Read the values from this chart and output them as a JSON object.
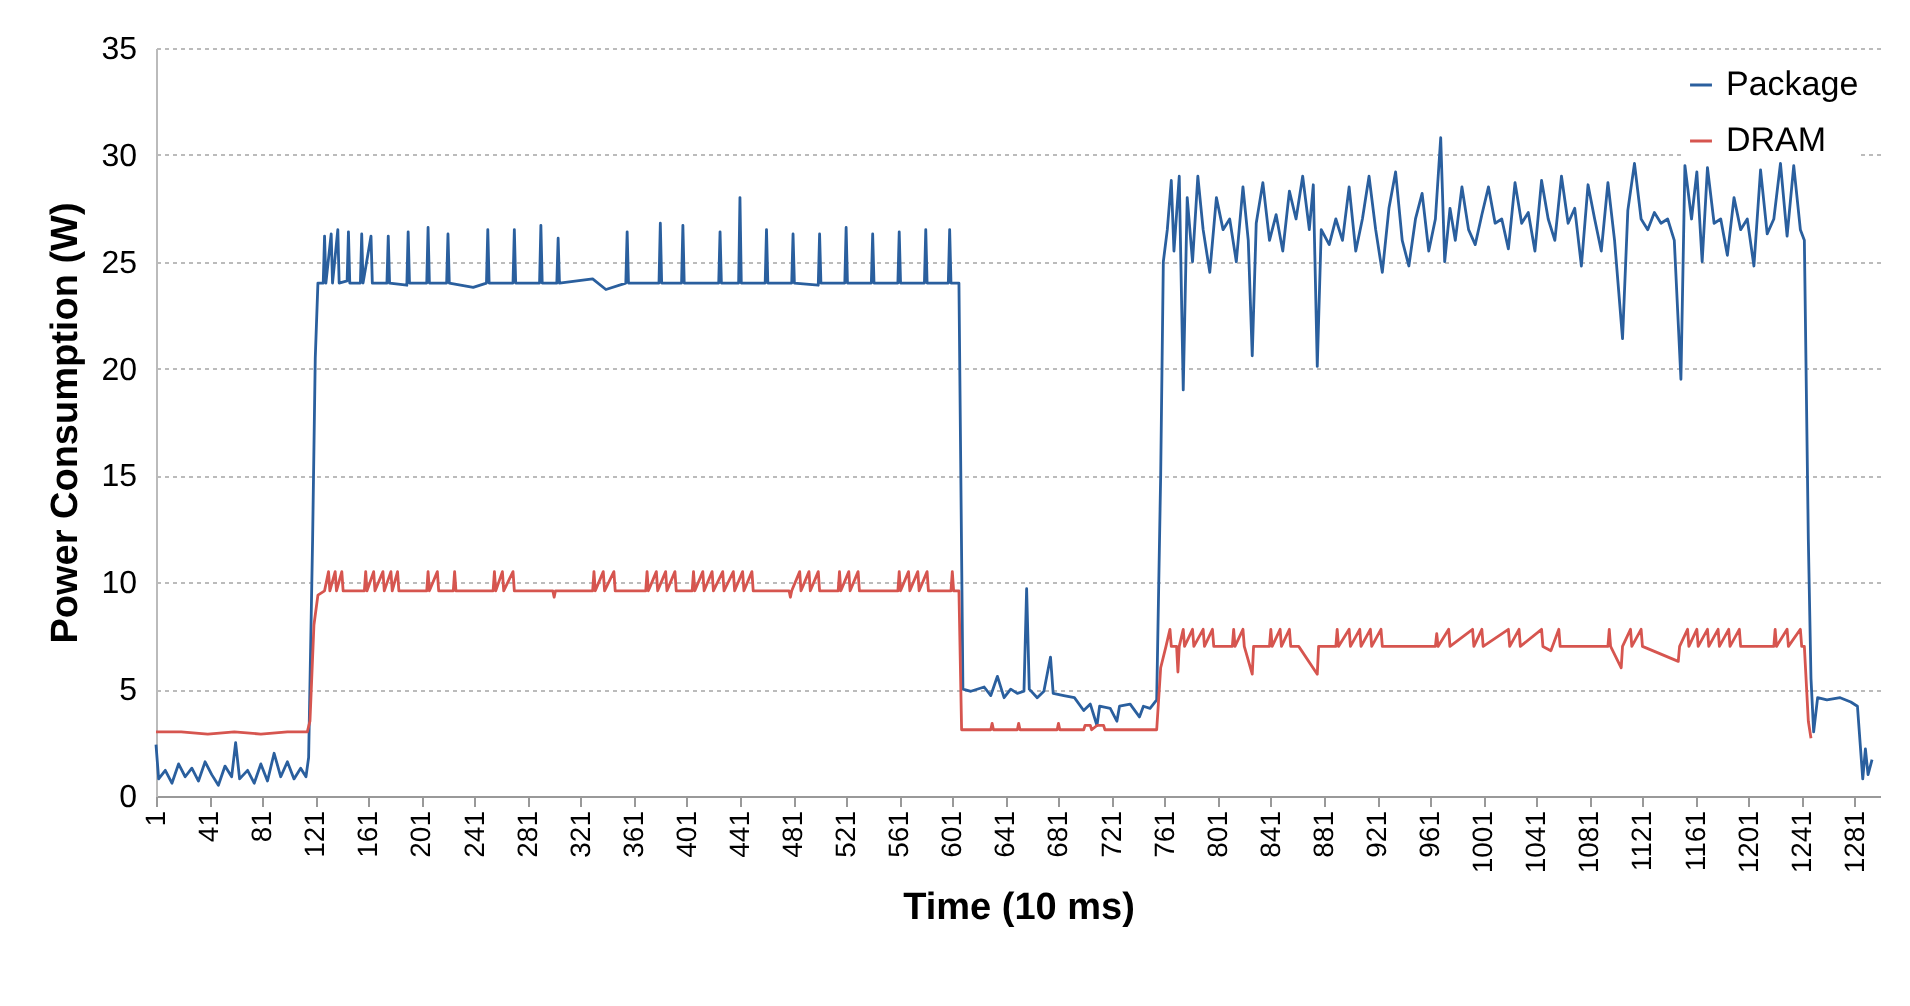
{
  "chart_data": {
    "type": "line",
    "xlabel": "Time (10 ms)",
    "ylabel": "Power Consumption (W)",
    "xlim": [
      1,
      1300
    ],
    "xticks": [
      1,
      41,
      81,
      121,
      161,
      201,
      241,
      281,
      321,
      361,
      401,
      441,
      481,
      521,
      561,
      601,
      641,
      681,
      721,
      761,
      801,
      841,
      881,
      921,
      961,
      1001,
      1041,
      1081,
      1121,
      1161,
      1201,
      1241,
      1281
    ],
    "ylim": [
      0,
      35
    ],
    "yticks": [
      0,
      5,
      10,
      15,
      20,
      25,
      30,
      35
    ],
    "grid": "y",
    "legend": "top right",
    "line_style": "solid",
    "series": [
      {
        "name": "Package",
        "color": "#2a5f9e",
        "x": [
          1,
          3,
          8,
          13,
          18,
          23,
          28,
          33,
          38,
          43,
          48,
          53,
          58,
          61,
          64,
          70,
          75,
          80,
          85,
          90,
          95,
          100,
          105,
          110,
          114,
          116,
          119,
          121,
          123,
          127,
          128,
          129,
          133,
          134,
          138,
          139,
          145,
          146,
          147,
          155,
          156,
          157,
          163,
          164,
          175,
          176,
          177,
          190,
          191,
          192,
          205,
          206,
          207,
          220,
          221,
          222,
          240,
          250,
          251,
          252,
          270,
          271,
          272,
          290,
          291,
          292,
          303,
          304,
          305,
          330,
          340,
          355,
          356,
          357,
          380,
          381,
          382,
          397,
          398,
          399,
          425,
          426,
          427,
          440,
          441,
          442,
          460,
          461,
          462,
          480,
          481,
          482,
          500,
          501,
          502,
          520,
          521,
          522,
          540,
          541,
          542,
          560,
          561,
          562,
          580,
          581,
          582,
          598,
          599,
          600,
          606,
          609,
          615,
          625,
          630,
          635,
          640,
          645,
          650,
          655,
          657,
          659,
          665,
          670,
          675,
          677,
          685,
          693,
          700,
          705,
          710,
          712,
          720,
          725,
          727,
          735,
          742,
          745,
          750,
          755,
          758,
          760,
          763,
          766,
          768,
          772,
          775,
          778,
          782,
          786,
          790,
          795,
          800,
          805,
          810,
          815,
          820,
          824,
          827,
          830,
          835,
          840,
          845,
          850,
          855,
          860,
          865,
          870,
          873,
          876,
          879,
          885,
          890,
          895,
          900,
          905,
          910,
          915,
          920,
          925,
          930,
          935,
          940,
          945,
          950,
          955,
          960,
          965,
          969,
          972,
          976,
          980,
          985,
          990,
          995,
          1000,
          1005,
          1010,
          1015,
          1020,
          1025,
          1030,
          1035,
          1040,
          1045,
          1050,
          1055,
          1060,
          1065,
          1070,
          1075,
          1080,
          1085,
          1090,
          1095,
          1100,
          1106,
          1110,
          1115,
          1120,
          1125,
          1130,
          1135,
          1140,
          1145,
          1150,
          1153,
          1158,
          1162,
          1166,
          1170,
          1175,
          1180,
          1185,
          1190,
          1195,
          1200,
          1205,
          1210,
          1215,
          1220,
          1225,
          1230,
          1235,
          1240,
          1243,
          1246,
          1248,
          1250,
          1253,
          1260,
          1270,
          1278,
          1283,
          1285,
          1287,
          1289,
          1291,
          1294
        ],
        "values": [
          2.4,
          0.8,
          1.2,
          0.6,
          1.5,
          0.9,
          1.3,
          0.7,
          1.6,
          1.0,
          0.5,
          1.4,
          0.9,
          2.5,
          0.8,
          1.2,
          0.6,
          1.5,
          0.7,
          2.0,
          0.9,
          1.6,
          0.8,
          1.3,
          0.9,
          1.8,
          12,
          20.5,
          24,
          24,
          26.2,
          24,
          26.3,
          24,
          26.5,
          24,
          24.1,
          26.4,
          24,
          24,
          26.3,
          24,
          26.2,
          24,
          24,
          26.2,
          24,
          23.9,
          26.4,
          24,
          24,
          26.6,
          24,
          24,
          26.3,
          24,
          23.8,
          24,
          26.5,
          24,
          24,
          26.5,
          24,
          24,
          26.7,
          24,
          24,
          26.1,
          24,
          24.2,
          23.7,
          24,
          26.4,
          24,
          24,
          26.8,
          24,
          24,
          26.7,
          24,
          24,
          26.4,
          24,
          24,
          28.0,
          24,
          24,
          26.5,
          24,
          24,
          26.3,
          24,
          23.9,
          26.3,
          24,
          24,
          26.6,
          24,
          24,
          26.3,
          24,
          24,
          26.4,
          24,
          24,
          26.5,
          24,
          24,
          26.5,
          24,
          24,
          5.0,
          4.9,
          5.1,
          4.7,
          5.6,
          4.6,
          5.0,
          4.8,
          4.9,
          9.7,
          5.0,
          4.6,
          4.9,
          6.5,
          4.8,
          4.7,
          4.6,
          4.0,
          4.3,
          3.3,
          4.2,
          4.1,
          3.5,
          4.2,
          4.3,
          3.7,
          4.2,
          4.1,
          4.5,
          15,
          25,
          26.5,
          28.8,
          25.5,
          29,
          19,
          28,
          25,
          29,
          26.5,
          24.5,
          28,
          26.5,
          27,
          25,
          28.5,
          26,
          20.6,
          26.8,
          28.7,
          26,
          27.2,
          25.5,
          28.3,
          27,
          29,
          26.5,
          28.6,
          20.1,
          26.5,
          25.8,
          27,
          26,
          28.5,
          25.5,
          27,
          29,
          26.5,
          24.5,
          27.5,
          29.2,
          26,
          24.8,
          27,
          28.2,
          25.5,
          27,
          30.8,
          25,
          27.5,
          26,
          28.5,
          26.5,
          25.8,
          27.2,
          28.5,
          26.8,
          27,
          25.6,
          28.7,
          26.8,
          27.3,
          25.5,
          28.8,
          27,
          26,
          29,
          26.8,
          27.5,
          24.8,
          28.6,
          27,
          25.5,
          28.7,
          26,
          21.4,
          27.4,
          29.6,
          27,
          26.5,
          27.3,
          26.8,
          27,
          26,
          19.5,
          29.5,
          27,
          29.2,
          25,
          29.4,
          26.8,
          27,
          25.3,
          28,
          26.5,
          27,
          24.8,
          29.3,
          26.3,
          27,
          29.6,
          26.2,
          29.5,
          26.5,
          26,
          12,
          5.5,
          3.0,
          4.6,
          4.5,
          4.6,
          4.4,
          4.2,
          2.5,
          0.8,
          2.2,
          1.0,
          1.7
        ]
      },
      {
        "name": "DRAM",
        "color": "#d6554f",
        "x": [
          1,
          20,
          40,
          60,
          80,
          100,
          115,
          117,
          120,
          123,
          128,
          131,
          132,
          136,
          137,
          141,
          142,
          158,
          159,
          160,
          165,
          166,
          172,
          173,
          178,
          179,
          183,
          184,
          205,
          206,
          207,
          213,
          214,
          225,
          226,
          227,
          255,
          256,
          257,
          262,
          263,
          270,
          271,
          300,
          301,
          302,
          330,
          331,
          332,
          338,
          339,
          346,
          347,
          370,
          371,
          372,
          378,
          379,
          385,
          386,
          392,
          393,
          405,
          406,
          407,
          413,
          414,
          420,
          421,
          428,
          429,
          436,
          437,
          443,
          444,
          450,
          451,
          478,
          479,
          480,
          486,
          487,
          493,
          494,
          500,
          501,
          515,
          516,
          517,
          523,
          524,
          530,
          531,
          560,
          561,
          562,
          568,
          569,
          575,
          576,
          582,
          583,
          600,
          601,
          602,
          606,
          608,
          620,
          630,
          631,
          632,
          650,
          651,
          652,
          680,
          681,
          682,
          700,
          701,
          705,
          706,
          710,
          715,
          716,
          755,
          758,
          762,
          765,
          766,
          770,
          771,
          772,
          775,
          776,
          782,
          783,
          790,
          791,
          797,
          798,
          812,
          813,
          814,
          820,
          821,
          827,
          828,
          840,
          841,
          842,
          848,
          849,
          855,
          856,
          862,
          876,
          877,
          890,
          891,
          892,
          900,
          901,
          908,
          909,
          916,
          917,
          924,
          925,
          965,
          966,
          967,
          975,
          976,
          993,
          994,
          1000,
          1001,
          1020,
          1021,
          1028,
          1029,
          1045,
          1046,
          1052,
          1058,
          1059,
          1095,
          1096,
          1097,
          1105,
          1106,
          1112,
          1113,
          1120,
          1121,
          1148,
          1149,
          1155,
          1156,
          1162,
          1163,
          1170,
          1171,
          1178,
          1179,
          1186,
          1187,
          1194,
          1195,
          1220,
          1221,
          1222,
          1230,
          1231,
          1240,
          1241,
          1243,
          1246,
          1248
        ],
        "values": [
          3.0,
          3.0,
          2.9,
          3.0,
          2.9,
          3.0,
          3.0,
          3.5,
          8,
          9.4,
          9.6,
          10.5,
          9.6,
          10.5,
          9.6,
          10.5,
          9.6,
          9.6,
          10.5,
          9.6,
          10.5,
          9.6,
          10.5,
          9.6,
          10.5,
          9.6,
          10.5,
          9.6,
          9.6,
          10.5,
          9.6,
          10.5,
          9.6,
          9.6,
          10.5,
          9.6,
          9.6,
          10.5,
          9.6,
          10.5,
          9.6,
          10.5,
          9.6,
          9.6,
          9.3,
          9.6,
          9.6,
          10.5,
          9.6,
          10.5,
          9.6,
          10.5,
          9.6,
          9.6,
          10.5,
          9.6,
          10.5,
          9.6,
          10.5,
          9.6,
          10.5,
          9.6,
          9.6,
          10.5,
          9.6,
          10.5,
          9.6,
          10.5,
          9.6,
          10.5,
          9.6,
          10.5,
          9.6,
          10.5,
          9.6,
          10.5,
          9.6,
          9.6,
          9.3,
          9.6,
          10.5,
          9.6,
          10.5,
          9.6,
          10.5,
          9.6,
          9.6,
          10.5,
          9.6,
          10.5,
          9.6,
          10.5,
          9.6,
          9.6,
          10.5,
          9.6,
          10.5,
          9.6,
          10.5,
          9.6,
          10.5,
          9.6,
          9.6,
          10.5,
          9.6,
          9.6,
          3.1,
          3.1,
          3.1,
          3.4,
          3.1,
          3.1,
          3.4,
          3.1,
          3.1,
          3.4,
          3.1,
          3.1,
          3.3,
          3.3,
          3.1,
          3.3,
          3.3,
          3.1,
          3.1,
          6,
          7.0,
          7.8,
          7.0,
          7.0,
          5.8,
          7.0,
          7.8,
          7.0,
          7.8,
          7.0,
          7.8,
          7.0,
          7.8,
          7.0,
          7.0,
          7.8,
          7.0,
          7.8,
          7.0,
          5.7,
          7.0,
          7.0,
          7.8,
          7.0,
          7.8,
          7.0,
          7.8,
          7.0,
          7.0,
          5.7,
          7.0,
          7.0,
          7.8,
          7.0,
          7.8,
          7.0,
          7.8,
          7.0,
          7.8,
          7.0,
          7.8,
          7.0,
          7.0,
          7.6,
          7.0,
          7.8,
          7.0,
          7.8,
          7.0,
          7.8,
          7.0,
          7.8,
          7.0,
          7.8,
          7.0,
          7.8,
          7.0,
          6.8,
          7.8,
          7.0,
          7.0,
          7.8,
          7.0,
          6.0,
          7.0,
          7.8,
          7.0,
          7.8,
          7.0,
          6.3,
          7.0,
          7.8,
          7.0,
          7.8,
          7.0,
          7.8,
          7.0,
          7.8,
          7.0,
          7.8,
          7.0,
          7.8,
          7.0,
          7.0,
          7.8,
          7.0,
          7.8,
          7.0,
          7.8,
          7.0,
          7.0,
          3.5,
          2.7
        ]
      }
    ]
  }
}
